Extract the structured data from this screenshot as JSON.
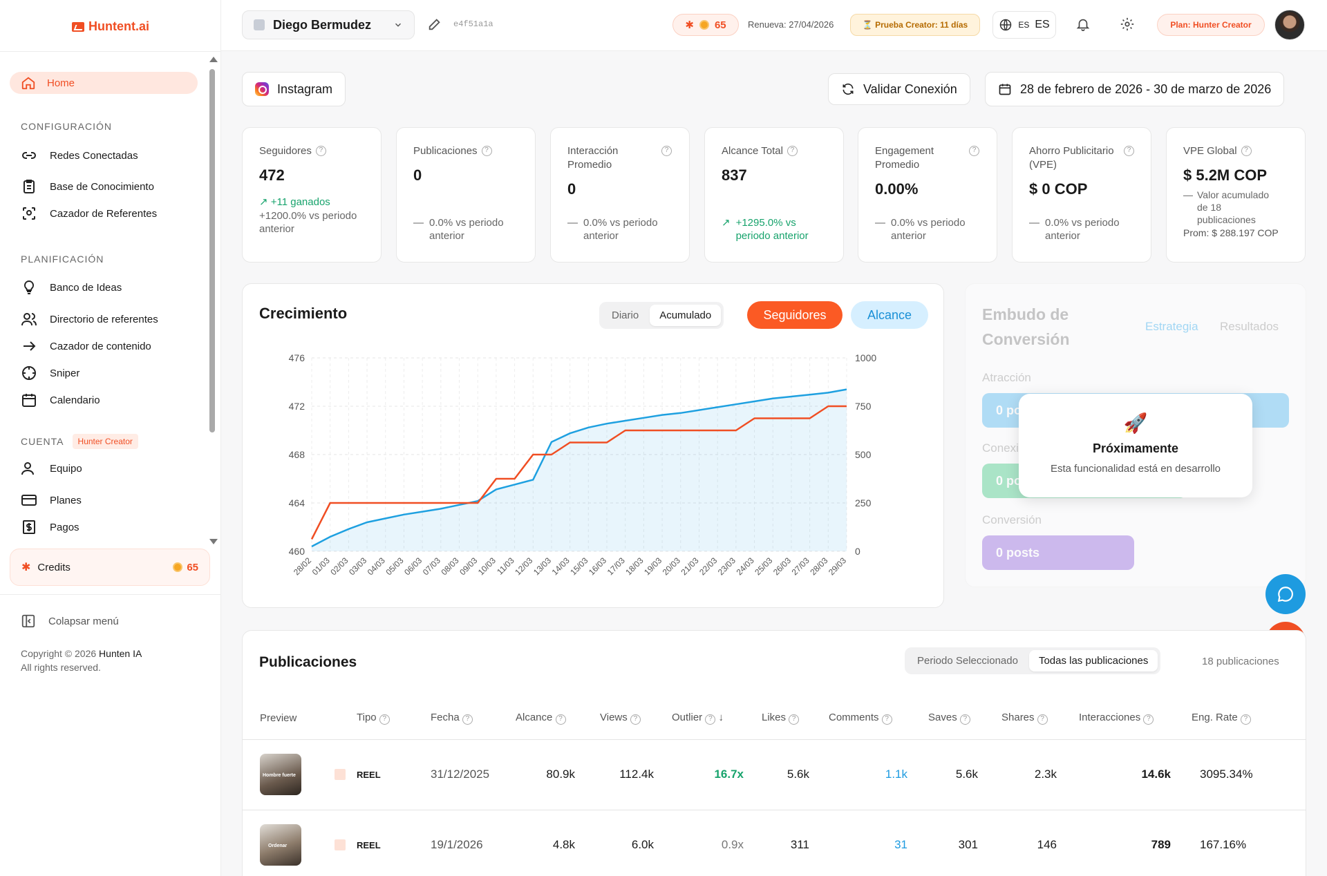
{
  "app": {
    "logo": "Huntent.ai"
  },
  "sidebar": {
    "home": "Home",
    "sections": {
      "config": "CONFIGURACIÓN",
      "planning": "PLANIFICACIÓN",
      "account": "CUENTA",
      "account_plan": "Hunter Creator"
    },
    "config_items": [
      "Redes Conectadas",
      "Base de Conocimiento",
      "Cazador de Referentes"
    ],
    "planning_items": [
      "Banco de Ideas",
      "Directorio de referentes",
      "Cazador de contenido",
      "Sniper",
      "Calendario"
    ],
    "account_items": [
      "Equipo",
      "Planes",
      "Pagos"
    ],
    "credits_label": "Credits",
    "credits_value": "65",
    "collapse": "Colapsar menú",
    "copyright_prefix": "Copyright © 2026",
    "copyright_brand": "Hunten IA",
    "rights": "All rights reserved."
  },
  "topbar": {
    "account_name": "Diego Bermudez",
    "account_id": "e4f51a1a",
    "credits": "65",
    "renew": "Renueva: 27/04/2026",
    "trial": "⏳ Prueba Creator: 11 días",
    "lang_small": "ES",
    "lang": "ES",
    "plan": "Plan: Hunter Creator"
  },
  "toolbar": {
    "network": "Instagram",
    "validate": "Validar Conexión",
    "date_range": "28 de febrero de 2026 - 30 de marzo de 2026"
  },
  "kpis": [
    {
      "label": "Seguidores",
      "value": "472",
      "delta_main": "↗ +11 ganados",
      "delta": "+1200.0% vs periodo anterior"
    },
    {
      "label": "Publicaciones",
      "value": "0",
      "delta": "0.0% vs periodo anterior"
    },
    {
      "label": "Interacción Promedio",
      "value": "0",
      "delta": "0.0% vs periodo anterior"
    },
    {
      "label": "Alcance Total",
      "value": "837",
      "delta": "+1295.0% vs periodo anterior"
    },
    {
      "label": "Engagement Promedio",
      "value": "0.00%",
      "delta": "0.0% vs periodo anterior"
    },
    {
      "label": "Ahorro Publicitario (VPE)",
      "value": "$ 0 COP",
      "delta": "0.0% vs periodo anterior"
    },
    {
      "label": "VPE Global",
      "value": "$ 5.2M COP",
      "delta": "Valor acumulado de 18 publicaciones",
      "extra": "Prom: $ 288.197 COP"
    }
  ],
  "growth": {
    "title": "Crecimiento",
    "seg_daily": "Diario",
    "seg_cumulative": "Acumulado",
    "btn_followers": "Seguidores",
    "btn_reach": "Alcance"
  },
  "chart_data": {
    "type": "line",
    "title": "Crecimiento",
    "x": [
      "28/02",
      "01/03",
      "02/03",
      "03/03",
      "04/03",
      "05/03",
      "06/03",
      "07/03",
      "08/03",
      "09/03",
      "10/03",
      "11/03",
      "12/03",
      "13/03",
      "14/03",
      "15/03",
      "16/03",
      "17/03",
      "18/03",
      "19/03",
      "20/03",
      "21/03",
      "22/03",
      "23/03",
      "24/03",
      "25/03",
      "26/03",
      "27/03",
      "28/03",
      "29/03"
    ],
    "y_left_ticks": [
      460,
      464,
      468,
      472,
      476
    ],
    "y_right_ticks": [
      0,
      250,
      500,
      750,
      1000
    ],
    "ylim_left": [
      460,
      476
    ],
    "ylim_right": [
      0,
      1000
    ],
    "grid": true,
    "series": [
      {
        "name": "Seguidores",
        "axis": "left",
        "color": "#f04e23",
        "values": [
          461,
          464,
          464,
          464,
          464,
          464,
          464,
          464,
          464,
          464,
          466,
          466,
          468,
          468,
          469,
          469,
          469,
          470,
          470,
          470,
          470,
          470,
          470,
          470,
          471,
          471,
          471,
          471,
          472,
          472
        ]
      },
      {
        "name": "Alcance",
        "axis": "right",
        "color": "#1ea0e0",
        "values": [
          25,
          75,
          115,
          150,
          170,
          190,
          205,
          220,
          240,
          260,
          320,
          345,
          370,
          565,
          610,
          640,
          660,
          675,
          690,
          705,
          715,
          730,
          745,
          760,
          775,
          790,
          800,
          810,
          820,
          837
        ]
      }
    ]
  },
  "funnel": {
    "title": "Embudo de Conversión",
    "tab_strategy": "Estrategia",
    "tab_results": "Resultados",
    "stages": [
      {
        "label": "Atracción",
        "value": "0 posts",
        "color": "#5bbcf3"
      },
      {
        "label": "Conexión",
        "value": "0 posts",
        "color": "#4fcf8e"
      },
      {
        "label": "Conversión",
        "value": "0 posts",
        "color": "#9a70e0"
      }
    ],
    "popup_icon": "🚀",
    "popup_title": "Próximamente",
    "popup_text": "Esta funcionalidad está en desarrollo"
  },
  "posts": {
    "title": "Publicaciones",
    "seg_period": "Periodo Seleccionado",
    "seg_all": "Todas las publicaciones",
    "count": "18 publicaciones",
    "columns": [
      "Preview",
      "Tipo",
      "Fecha",
      "Alcance",
      "Views",
      "Outlier",
      "Likes",
      "Comments",
      "Saves",
      "Shares",
      "Interacciones",
      "Eng. Rate"
    ],
    "rows": [
      {
        "tipo": "REEL",
        "fecha": "31/12/2025",
        "alcance": "80.9k",
        "views": "112.4k",
        "outlier": "16.7x",
        "likes": "5.6k",
        "comments": "1.1k",
        "saves": "5.6k",
        "shares": "2.3k",
        "interacciones": "14.6k",
        "eng": "3095.34%",
        "thumb_caption": "Hombre fuerte"
      },
      {
        "tipo": "REEL",
        "fecha": "19/1/2026",
        "alcance": "4.8k",
        "views": "6.0k",
        "outlier": "0.9x",
        "likes": "311",
        "comments": "31",
        "saves": "301",
        "shares": "146",
        "interacciones": "789",
        "eng": "167.16%",
        "thumb_caption": "Ordenar"
      }
    ]
  }
}
